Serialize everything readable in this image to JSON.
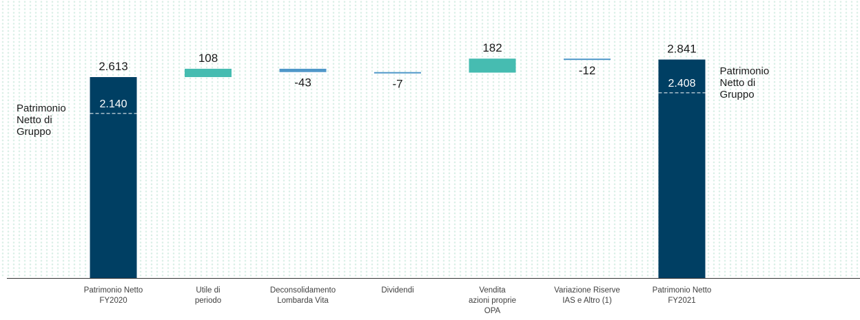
{
  "chart_data": {
    "type": "bar",
    "subtype": "waterfall",
    "title": "",
    "xlabel": "",
    "ylabel": "",
    "ylim": [
      0,
      3000
    ],
    "grid": false,
    "categories": [
      [
        "Patrimonio Netto",
        "FY2020"
      ],
      [
        "Utile di",
        "periodo"
      ],
      [
        "Deconsolidamento",
        "Lombarda Vita"
      ],
      [
        "Dividendi"
      ],
      [
        "Vendita",
        "azioni proprie",
        "OPA"
      ],
      [
        "Variazione Riserve",
        "IAS e Altro (1)"
      ],
      [
        "Patrimonio Netto",
        "FY2021"
      ]
    ],
    "steps": [
      {
        "kind": "total",
        "value": 2613,
        "label": "2.613",
        "group_value": 2140,
        "group_label": "2.140"
      },
      {
        "kind": "delta",
        "value": 108,
        "label": "108"
      },
      {
        "kind": "delta",
        "value": -43,
        "label": "-43"
      },
      {
        "kind": "delta",
        "value": -7,
        "label": "-7"
      },
      {
        "kind": "delta",
        "value": 182,
        "label": "182"
      },
      {
        "kind": "delta",
        "value": -12,
        "label": "-12"
      },
      {
        "kind": "total",
        "value": 2841,
        "label": "2.841",
        "group_value": 2408,
        "group_label": "2.408"
      }
    ],
    "annotations": [
      {
        "text": [
          "Patrimonio",
          "Netto di",
          "Gruppo"
        ],
        "position": "left of first bar"
      },
      {
        "text": [
          "Patrimonio",
          "Netto di",
          "Gruppo"
        ],
        "position": "right of last bar"
      }
    ],
    "colors": {
      "total": "#003f63",
      "increase": "#46bcb1",
      "decrease": "#4f97c9",
      "background_pattern": "#d9efe6",
      "axis": "#333333"
    }
  }
}
